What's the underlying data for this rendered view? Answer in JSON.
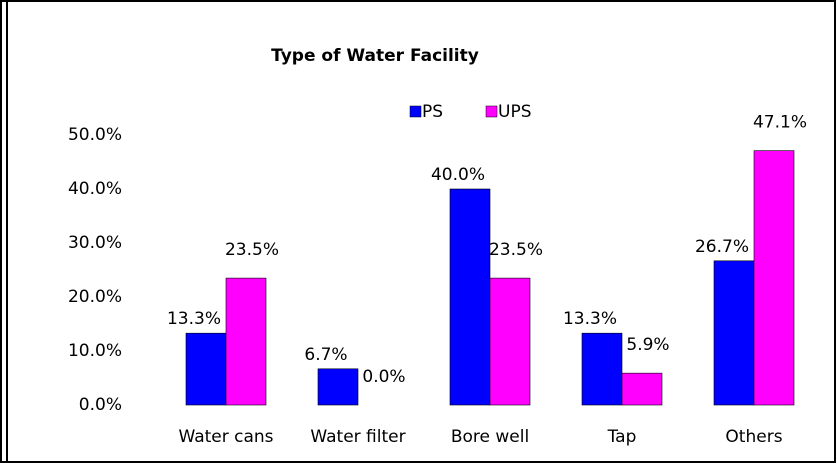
{
  "chart_data": {
    "type": "bar",
    "title": "Type of Water Facility",
    "categories": [
      "Water cans",
      "Water filter",
      "Bore well",
      "Tap",
      "Others"
    ],
    "series": [
      {
        "name": "PS",
        "color": "#0000ff",
        "values": [
          13.3,
          6.7,
          40.0,
          13.3,
          26.7
        ],
        "value_labels": [
          "13.3%",
          "6.7%",
          "40.0%",
          "13.3%",
          "26.7%"
        ]
      },
      {
        "name": "UPS",
        "color": "#ff00ff",
        "values": [
          23.5,
          0.0,
          23.5,
          5.9,
          47.1
        ],
        "value_labels": [
          "23.5%",
          "0.0%",
          "23.5%",
          "5.9%",
          "47.1%"
        ]
      }
    ],
    "ylim": [
      0,
      50
    ],
    "yticks": [
      {
        "value": 0,
        "label": "0.0%"
      },
      {
        "value": 10,
        "label": "10.0%"
      },
      {
        "value": 20,
        "label": "20.0%"
      },
      {
        "value": 30,
        "label": "30.0%"
      },
      {
        "value": 40,
        "label": "40.0%"
      },
      {
        "value": 50,
        "label": "50.0%"
      }
    ],
    "legend": "top"
  }
}
